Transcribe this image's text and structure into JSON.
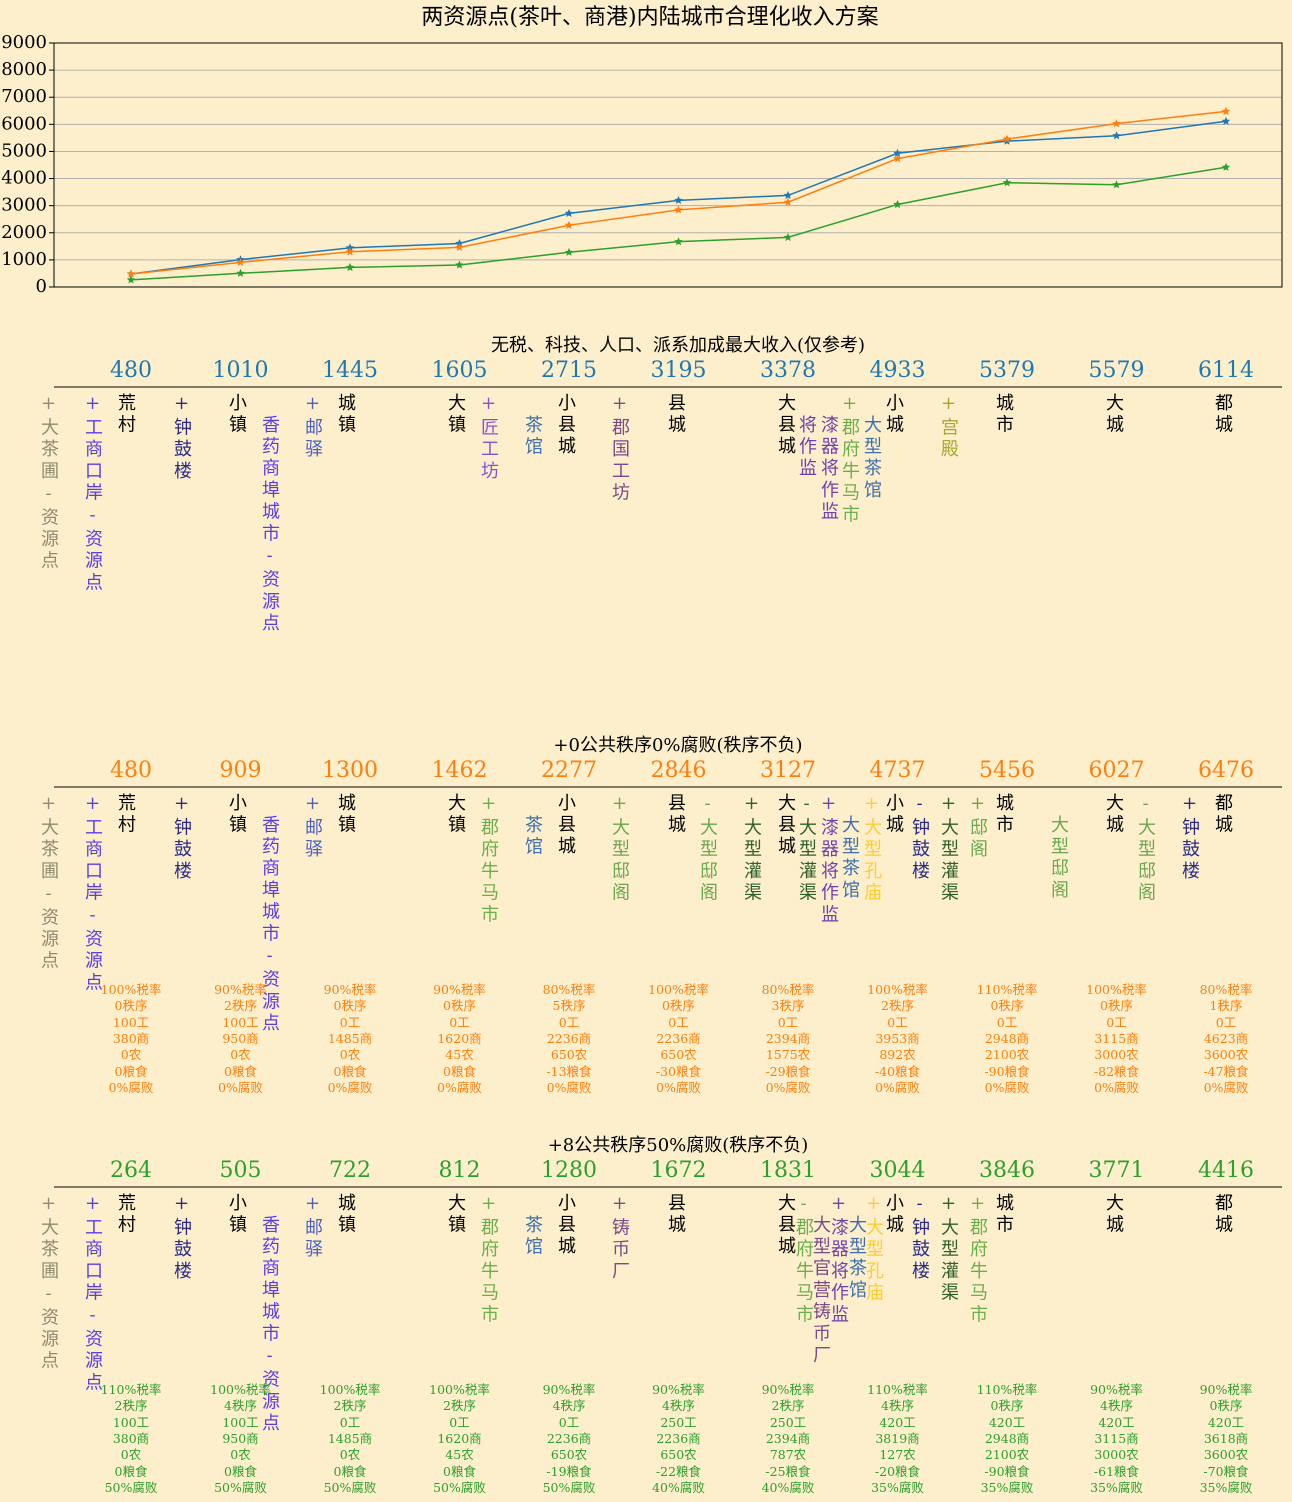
{
  "chart_data": {
    "type": "line",
    "title": "两资源点(茶叶、商港)内陆城市合理化收入方案",
    "ylim": [
      0,
      9000
    ],
    "yticks": [
      0,
      1000,
      2000,
      3000,
      4000,
      5000,
      6000,
      7000,
      8000,
      9000
    ],
    "grid": true,
    "marker": "star",
    "series": [
      {
        "name": "无税、科技、人口、派系加成最大收入(仅参考)",
        "color": "#1f77b4",
        "values": [
          480,
          1010,
          1445,
          1605,
          2715,
          3195,
          3378,
          4933,
          5379,
          5579,
          6114
        ]
      },
      {
        "name": "+0公共秩序0%腐败(秩序不负)",
        "color": "#ff7f0e",
        "values": [
          480,
          909,
          1300,
          1462,
          2277,
          2846,
          3127,
          4737,
          5456,
          6027,
          6476
        ]
      },
      {
        "name": "+8公共秩序50%腐败(秩序不负)",
        "color": "#2ca02c",
        "values": [
          264,
          505,
          722,
          812,
          1280,
          1672,
          1831,
          3044,
          3846,
          3771,
          4416
        ]
      }
    ]
  },
  "sections": [
    {
      "labels": [
        {
          "text": "+大茶圃-资源点",
          "color": "#8f8a73"
        },
        {
          "text": "+工商口岸-资源点",
          "color": "#5a3cf0"
        },
        {
          "text": "荒村",
          "color": "#000000"
        },
        {
          "text": "+钟鼓楼",
          "color": "#2b2b8c"
        },
        {
          "text": "小镇",
          "color": "#000000"
        },
        {
          "text": "香药商埠城市-资源点",
          "color": "#5a3cf0"
        },
        {
          "text": "+邮驿",
          "color": "#4a5fc8"
        },
        {
          "text": "城镇",
          "color": "#000000"
        },
        {
          "text": "大镇",
          "color": "#000000"
        },
        {
          "text": "+匠工坊",
          "color": "#8a4fd8"
        },
        {
          "text": "茶馆",
          "color": "#3d6fb0"
        },
        {
          "text": "小县城",
          "color": "#000000"
        },
        {
          "text": "+郡国工坊",
          "color": "#7a4a8a"
        },
        {
          "text": "县城",
          "color": "#000000"
        },
        {
          "text": "大县城",
          "color": "#000000"
        },
        {
          "text": "将作监",
          "color": "#7040b0"
        },
        {
          "text": "漆器将作监",
          "color": "#7040b0"
        },
        {
          "text": "+郡府牛马市",
          "color": "#6ab04c"
        },
        {
          "text": "大型茶馆",
          "color": "#3d6fb0"
        },
        {
          "text": "小城",
          "color": "#000000"
        },
        {
          "text": "+宫殿",
          "color": "#a8a830"
        },
        {
          "text": "城市",
          "color": "#000000"
        },
        {
          "text": "大城",
          "color": "#000000"
        },
        {
          "text": "都城",
          "color": "#000000"
        }
      ]
    },
    {
      "labels": [
        {
          "text": "+大茶圃-资源点",
          "color": "#8f8a73"
        },
        {
          "text": "+工商口岸-资源点",
          "color": "#5a3cf0"
        },
        {
          "text": "荒村",
          "color": "#000000"
        },
        {
          "text": "+钟鼓楼",
          "color": "#2b2b8c"
        },
        {
          "text": "小镇",
          "color": "#000000"
        },
        {
          "text": "香药商埠城市-资源点",
          "color": "#5a3cf0"
        },
        {
          "text": "+邮驿",
          "color": "#4a5fc8"
        },
        {
          "text": "城镇",
          "color": "#000000"
        },
        {
          "text": "大镇",
          "color": "#000000"
        },
        {
          "text": "+郡府牛马市",
          "color": "#6ab04c"
        },
        {
          "text": "茶馆",
          "color": "#3d6fb0"
        },
        {
          "text": "小县城",
          "color": "#000000"
        },
        {
          "text": "+大型邸阁",
          "color": "#6aa84f"
        },
        {
          "text": "县城",
          "color": "#000000"
        },
        {
          "text": "-大型邸阁",
          "color": "#6aa84f"
        },
        {
          "text": "+大型灌渠",
          "color": "#2f5f2f"
        },
        {
          "text": "大县城",
          "color": "#000000"
        },
        {
          "text": "-大型灌渠",
          "color": "#2f5f2f"
        },
        {
          "text": "+漆器将作监",
          "color": "#7040b0"
        },
        {
          "text": "大型茶馆",
          "color": "#3d6fb0"
        },
        {
          "text": "+大型孔庙",
          "color": "#ffcc33"
        },
        {
          "text": "小城",
          "color": "#000000"
        },
        {
          "text": "-钟鼓楼",
          "color": "#2b2b8c"
        },
        {
          "text": "+大型灌渠",
          "color": "#2f5f2f"
        },
        {
          "text": "+邸阁",
          "color": "#6aa84f"
        },
        {
          "text": "城市",
          "color": "#000000"
        },
        {
          "text": "大型邸阁",
          "color": "#6aa84f"
        },
        {
          "text": "大城",
          "color": "#000000"
        },
        {
          "text": "-大型邸阁",
          "color": "#6aa84f"
        },
        {
          "text": "+钟鼓楼",
          "color": "#2b2b8c"
        },
        {
          "text": "都城",
          "color": "#000000"
        }
      ],
      "stats": [
        [
          "100%税率",
          "0秩序",
          "100工",
          "380商",
          "0农",
          "0粮食",
          "0%腐败"
        ],
        [
          "90%税率",
          "2秩序",
          "100工",
          "950商",
          "0农",
          "0粮食",
          "0%腐败"
        ],
        [
          "90%税率",
          "0秩序",
          "0工",
          "1485商",
          "0农",
          "0粮食",
          "0%腐败"
        ],
        [
          "90%税率",
          "0秩序",
          "0工",
          "1620商",
          "45农",
          "0粮食",
          "0%腐败"
        ],
        [
          "80%税率",
          "5秩序",
          "0工",
          "2236商",
          "650农",
          "-13粮食",
          "0%腐败"
        ],
        [
          "100%税率",
          "0秩序",
          "0工",
          "2236商",
          "650农",
          "-30粮食",
          "0%腐败"
        ],
        [
          "80%税率",
          "3秩序",
          "0工",
          "2394商",
          "1575农",
          "-29粮食",
          "0%腐败"
        ],
        [
          "100%税率",
          "2秩序",
          "0工",
          "3953商",
          "892农",
          "-40粮食",
          "0%腐败"
        ],
        [
          "110%税率",
          "0秩序",
          "0工",
          "2948商",
          "2100农",
          "-90粮食",
          "0%腐败"
        ],
        [
          "100%税率",
          "0秩序",
          "0工",
          "3115商",
          "3000农",
          "-82粮食",
          "0%腐败"
        ],
        [
          "80%税率",
          "1秩序",
          "0工",
          "4623商",
          "3600农",
          "-47粮食",
          "0%腐败"
        ]
      ]
    },
    {
      "labels": [
        {
          "text": "+大茶圃-资源点",
          "color": "#8f8a73"
        },
        {
          "text": "+工商口岸-资源点",
          "color": "#5a3cf0"
        },
        {
          "text": "荒村",
          "color": "#000000"
        },
        {
          "text": "+钟鼓楼",
          "color": "#2b2b8c"
        },
        {
          "text": "小镇",
          "color": "#000000"
        },
        {
          "text": "香药商埠城市-资源点",
          "color": "#5a3cf0"
        },
        {
          "text": "+邮驿",
          "color": "#4a5fc8"
        },
        {
          "text": "城镇",
          "color": "#000000"
        },
        {
          "text": "大镇",
          "color": "#000000"
        },
        {
          "text": "+郡府牛马市",
          "color": "#6ab04c"
        },
        {
          "text": "茶馆",
          "color": "#3d6fb0"
        },
        {
          "text": "小县城",
          "color": "#000000"
        },
        {
          "text": "+铸币厂",
          "color": "#7a4a8a"
        },
        {
          "text": "县城",
          "color": "#000000"
        },
        {
          "text": "大县城",
          "color": "#000000"
        },
        {
          "text": "-郡府牛马市",
          "color": "#6ab04c"
        },
        {
          "text": "大型官营铸币厂",
          "color": "#7a4a8a"
        },
        {
          "text": "+漆器将作监",
          "color": "#7040b0"
        },
        {
          "text": "大型茶馆",
          "color": "#3d6fb0"
        },
        {
          "text": "+大型孔庙",
          "color": "#ffcc33"
        },
        {
          "text": "小城",
          "color": "#000000"
        },
        {
          "text": "-钟鼓楼",
          "color": "#2b2b8c"
        },
        {
          "text": "+大型灌渠",
          "color": "#2f5f2f"
        },
        {
          "text": "+郡府牛马市",
          "color": "#6ab04c"
        },
        {
          "text": "城市",
          "color": "#000000"
        },
        {
          "text": "大城",
          "color": "#000000"
        },
        {
          "text": "都城",
          "color": "#000000"
        }
      ],
      "stats": [
        [
          "110%税率",
          "2秩序",
          "100工",
          "380商",
          "0农",
          "0粮食",
          "50%腐败"
        ],
        [
          "100%税率",
          "4秩序",
          "100工",
          "950商",
          "0农",
          "0粮食",
          "50%腐败"
        ],
        [
          "100%税率",
          "2秩序",
          "0工",
          "1485商",
          "0农",
          "0粮食",
          "50%腐败"
        ],
        [
          "100%税率",
          "2秩序",
          "0工",
          "1620商",
          "45农",
          "0粮食",
          "50%腐败"
        ],
        [
          "90%税率",
          "4秩序",
          "0工",
          "2236商",
          "650农",
          "-19粮食",
          "50%腐败"
        ],
        [
          "90%税率",
          "4秩序",
          "250工",
          "2236商",
          "650农",
          "-22粮食",
          "40%腐败"
        ],
        [
          "90%税率",
          "2秩序",
          "250工",
          "2394商",
          "787农",
          "-25粮食",
          "40%腐败"
        ],
        [
          "110%税率",
          "4秩序",
          "420工",
          "3819商",
          "127农",
          "-20粮食",
          "35%腐败"
        ],
        [
          "110%税率",
          "0秩序",
          "420工",
          "2948商",
          "2100农",
          "-90粮食",
          "35%腐败"
        ],
        [
          "90%税率",
          "4秩序",
          "420工",
          "3115商",
          "3000农",
          "-61粮食",
          "35%腐败"
        ],
        [
          "90%税率",
          "0秩序",
          "420工",
          "3618商",
          "3600农",
          "-70粮食",
          "35%腐败"
        ]
      ]
    }
  ]
}
